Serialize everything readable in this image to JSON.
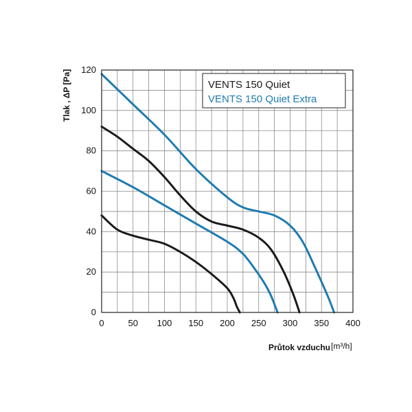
{
  "chart_data": {
    "type": "line",
    "xlabel": "Průtok vzduchu",
    "xunit": "[m³/h]",
    "ylabel": "Tlak , ΔP [Pa]",
    "xlim": [
      0,
      400
    ],
    "ylim": [
      0,
      120
    ],
    "xticks": [
      "0",
      "50",
      "100",
      "150",
      "200",
      "250",
      "300",
      "350",
      "400"
    ],
    "yticks": [
      "0",
      "20",
      "40",
      "60",
      "80",
      "100",
      "120"
    ],
    "x_tick_values": [
      0,
      50,
      100,
      150,
      200,
      250,
      300,
      350,
      400
    ],
    "y_tick_values": [
      0,
      20,
      40,
      60,
      80,
      100,
      120
    ],
    "grid": true,
    "legend_position": "top-right",
    "legend": [
      {
        "label": "VENTS 150 Quiet",
        "color": "#1a1a1a"
      },
      {
        "label": "VENTS 150 Quiet Extra",
        "color": "#1f7bb0"
      }
    ],
    "series": [
      {
        "group": "VENTS 150 Quiet",
        "color": "#1a1a1a",
        "points": [
          [
            0,
            48
          ],
          [
            25,
            41
          ],
          [
            50,
            38
          ],
          [
            75,
            36
          ],
          [
            100,
            34
          ],
          [
            125,
            30
          ],
          [
            150,
            25
          ],
          [
            175,
            19
          ],
          [
            200,
            12
          ],
          [
            210,
            7
          ],
          [
            215,
            3
          ],
          [
            220,
            0
          ]
        ]
      },
      {
        "group": "VENTS 150 Quiet",
        "color": "#1a1a1a",
        "points": [
          [
            0,
            92
          ],
          [
            25,
            87
          ],
          [
            50,
            81
          ],
          [
            75,
            75
          ],
          [
            100,
            67
          ],
          [
            125,
            58
          ],
          [
            150,
            50
          ],
          [
            175,
            45
          ],
          [
            200,
            43
          ],
          [
            225,
            41
          ],
          [
            250,
            37
          ],
          [
            270,
            31
          ],
          [
            290,
            20
          ],
          [
            305,
            9
          ],
          [
            315,
            0
          ]
        ]
      },
      {
        "group": "VENTS 150 Quiet Extra",
        "color": "#1f7bb0",
        "points": [
          [
            0,
            70
          ],
          [
            50,
            62
          ],
          [
            100,
            53
          ],
          [
            150,
            44
          ],
          [
            200,
            35
          ],
          [
            225,
            29
          ],
          [
            245,
            21
          ],
          [
            260,
            14
          ],
          [
            270,
            8
          ],
          [
            280,
            0
          ]
        ]
      },
      {
        "group": "VENTS 150 Quiet Extra",
        "color": "#1f7bb0",
        "points": [
          [
            0,
            118
          ],
          [
            50,
            103
          ],
          [
            100,
            88
          ],
          [
            150,
            71
          ],
          [
            200,
            57
          ],
          [
            225,
            52
          ],
          [
            250,
            50
          ],
          [
            275,
            48
          ],
          [
            300,
            43
          ],
          [
            320,
            35
          ],
          [
            340,
            22
          ],
          [
            360,
            8
          ],
          [
            370,
            0
          ]
        ]
      }
    ]
  }
}
